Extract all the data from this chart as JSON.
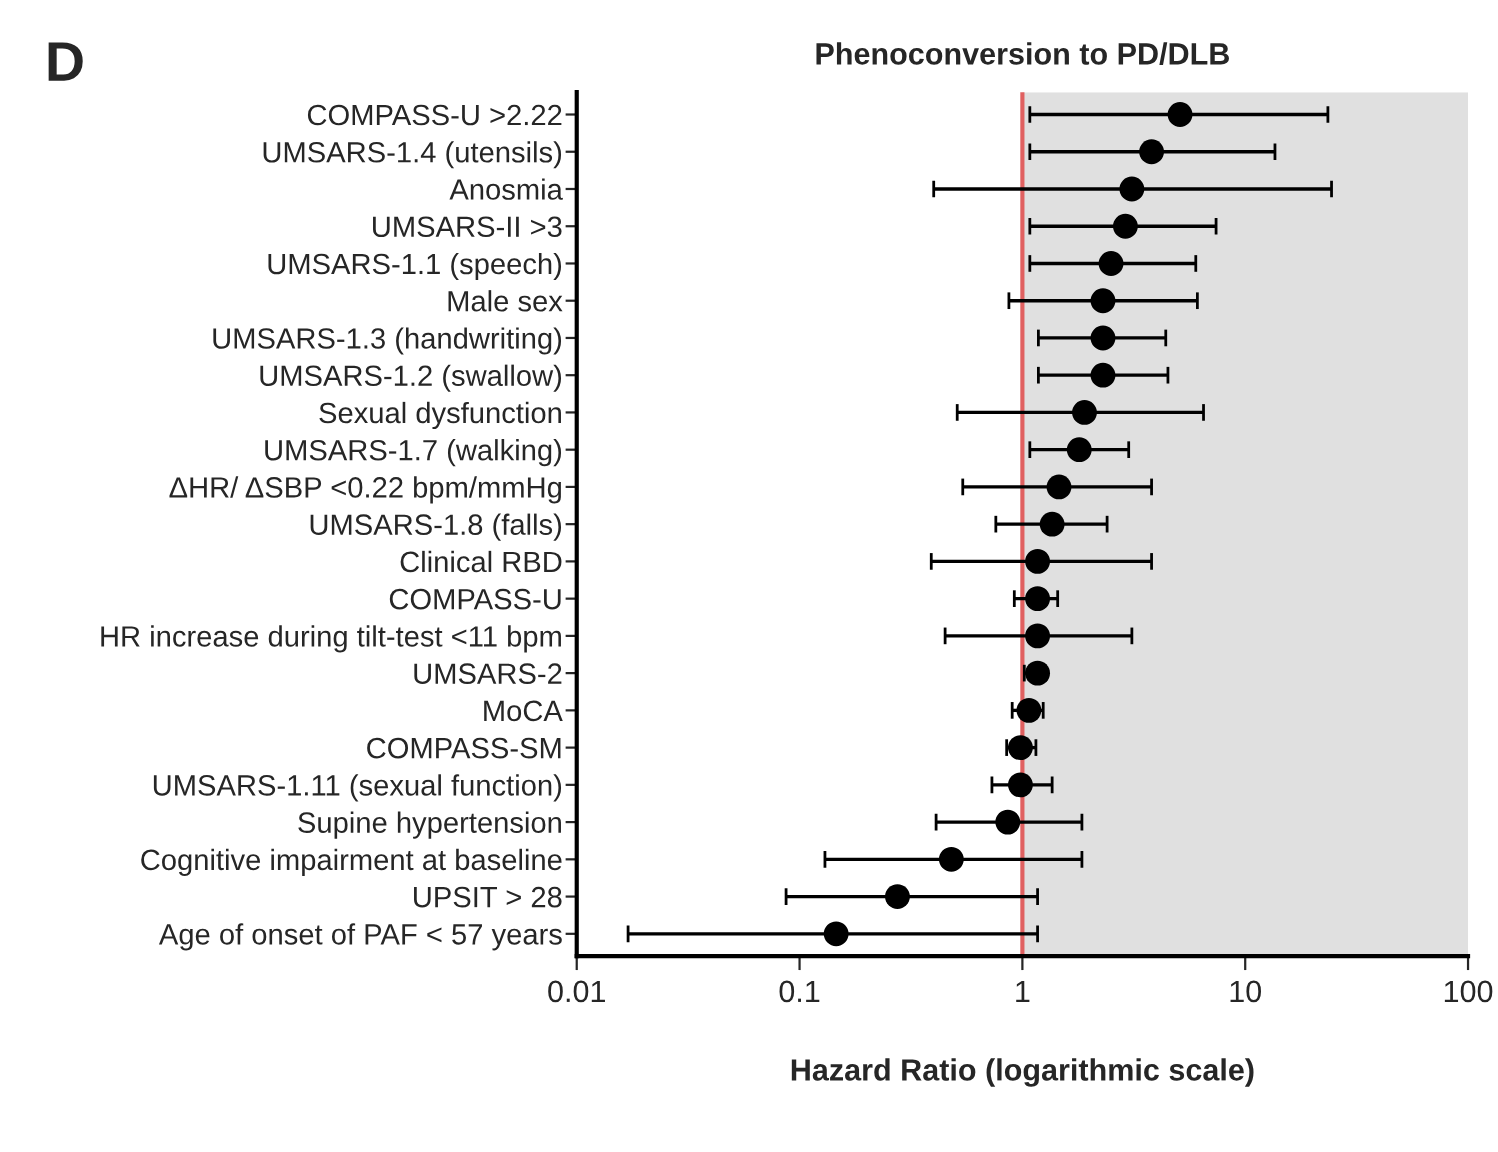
{
  "chart_data": {
    "type": "scatter",
    "orientation": "horizontal",
    "title": "Phenoconversion to PD/DLB",
    "xlabel": "Hazard Ratio (logarithmic scale)",
    "annotations": [
      "D"
    ],
    "categories": [
      "COMPASS-U >2.22",
      "UMSARS-1.4 (utensils)",
      "Anosmia",
      "UMSARS-II >3",
      "UMSARS-1.1 (speech)",
      "Male sex",
      "UMSARS-1.3 (handwriting)",
      "UMSARS-1.2 (swallow)",
      "Sexual dysfunction",
      "UMSARS-1.7 (walking)",
      "ΔHR/ ΔSBP <0.22 bpm/mmHg",
      "UMSARS-1.8 (falls)",
      "Clinical RBD",
      "COMPASS-U",
      "HR increase during tilt-test <11 bpm",
      "UMSARS-2",
      "MoCA",
      "COMPASS-SM",
      "UMSARS-1.11 (sexual function)",
      "Supine hypertension",
      "Cognitive impairment at baseline",
      "UPSIT > 28",
      "Age of onset of PAF < 57 years"
    ],
    "series": [
      {
        "color": "#000000",
        "values": [
          5.1,
          3.8,
          3.1,
          2.9,
          2.5,
          2.3,
          2.3,
          2.3,
          1.9,
          1.8,
          1.46,
          1.36,
          1.17,
          1.17,
          1.17,
          1.17,
          1.07,
          0.98,
          0.98,
          0.86,
          0.48,
          0.275,
          0.146
        ],
        "errors": [
          [
            1.08,
            23.5
          ],
          [
            1.08,
            13.6
          ],
          [
            0.4,
            24.4
          ],
          [
            1.08,
            7.4
          ],
          [
            1.08,
            6.0
          ],
          [
            0.87,
            6.1
          ],
          [
            1.18,
            4.4
          ],
          [
            1.18,
            4.5
          ],
          [
            0.51,
            6.5
          ],
          [
            1.08,
            3.0
          ],
          [
            0.54,
            3.8
          ],
          [
            0.76,
            2.4
          ],
          [
            0.39,
            3.8
          ],
          [
            0.92,
            1.44
          ],
          [
            0.45,
            3.1
          ],
          [
            1.02,
            1.27
          ],
          [
            0.9,
            1.24
          ],
          [
            0.85,
            1.15
          ],
          [
            0.73,
            1.36
          ],
          [
            0.41,
            1.85
          ],
          [
            0.13,
            1.85
          ],
          [
            0.087,
            1.17
          ],
          [
            0.017,
            1.17
          ]
        ]
      }
    ],
    "log": "x",
    "xlim": [
      0.01,
      100
    ],
    "xticks": [
      0.01,
      0.1,
      1,
      10,
      100
    ],
    "marker": "circle",
    "grid": false,
    "legend": false,
    "ref_lines": [
      {
        "axis": "x",
        "value": 1,
        "color": "#e06060"
      }
    ],
    "bands": [
      {
        "axis": "x",
        "from": 1,
        "to": 100,
        "color": "#e0e0e0"
      }
    ]
  }
}
